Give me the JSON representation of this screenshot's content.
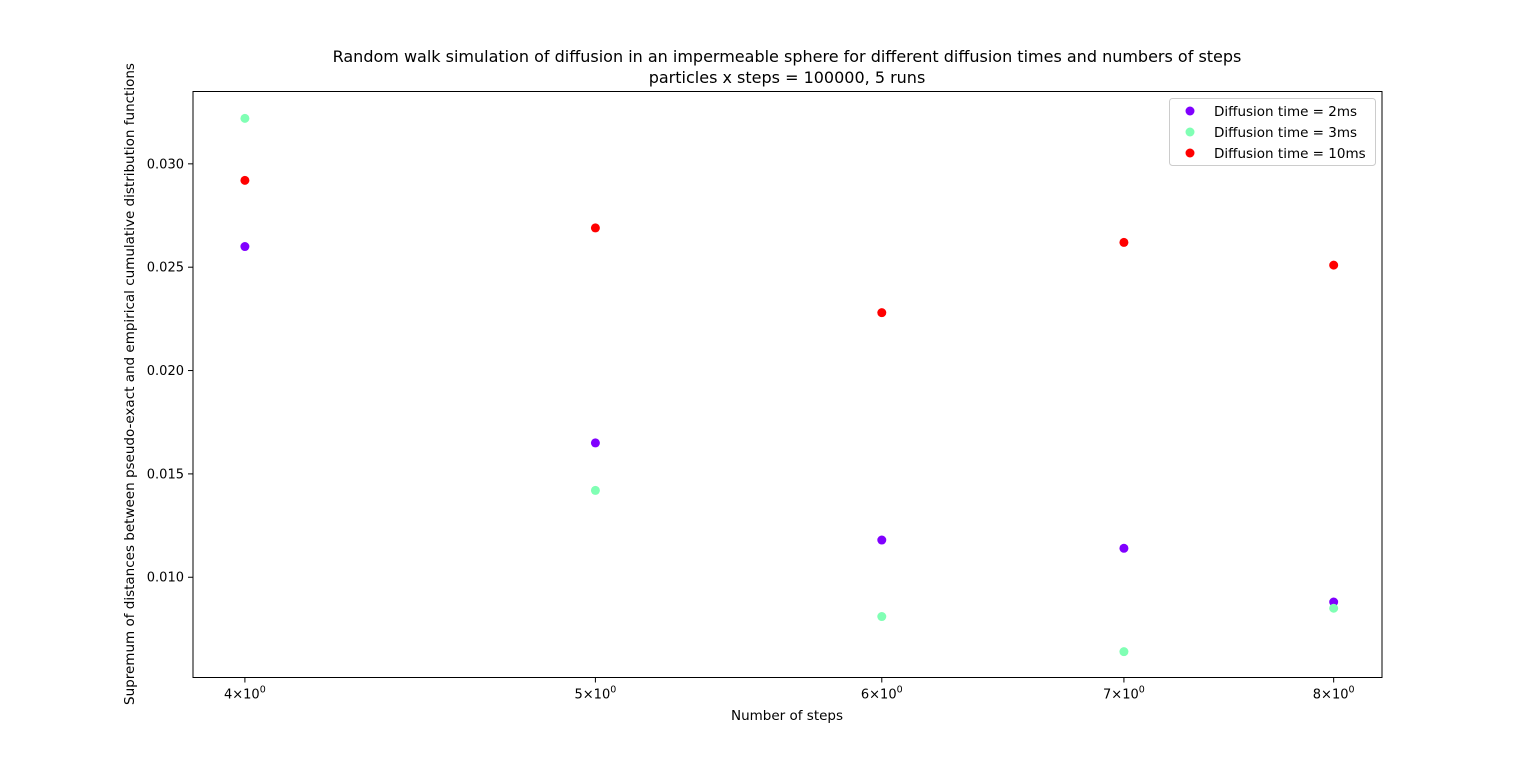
{
  "chart_data": {
    "type": "scatter",
    "title": "Random walk simulation of diffusion in an impermeable sphere for different diffusion times and numbers of steps",
    "subtitle": "particles x steps = 100000, 5 runs",
    "xlabel": "Number of steps",
    "ylabel": "Supremum of distances between pseudo-exact and empirical cumulative distribution functions",
    "x_scale": "log",
    "x_ticks": [
      {
        "value": 4,
        "base": "4",
        "exp": "0"
      },
      {
        "value": 5,
        "base": "5",
        "exp": "0"
      },
      {
        "value": 6,
        "base": "6",
        "exp": "0"
      },
      {
        "value": 7,
        "base": "7",
        "exp": "0"
      },
      {
        "value": 8,
        "base": "8",
        "exp": "0"
      }
    ],
    "y_ticks": [
      "0.010",
      "0.015",
      "0.020",
      "0.025",
      "0.030"
    ],
    "xlim": [
      3.87,
      8.25
    ],
    "ylim": [
      0.00515,
      0.0335
    ],
    "grid": false,
    "legend_position": "upper right",
    "series": [
      {
        "name": "Diffusion time = 2ms",
        "color": "#8000ff",
        "x": [
          4,
          5,
          6,
          7,
          8
        ],
        "y": [
          0.026,
          0.0165,
          0.0118,
          0.0114,
          0.0088
        ]
      },
      {
        "name": "Diffusion time = 3ms",
        "color": "#80ffb4",
        "x": [
          4,
          5,
          6,
          7,
          8
        ],
        "y": [
          0.0322,
          0.0142,
          0.0081,
          0.0064,
          0.0085
        ]
      },
      {
        "name": "Diffusion time = 10ms",
        "color": "#ff0000",
        "x": [
          4,
          5,
          6,
          7,
          8
        ],
        "y": [
          0.0292,
          0.0269,
          0.0228,
          0.0262,
          0.0251
        ]
      }
    ]
  }
}
